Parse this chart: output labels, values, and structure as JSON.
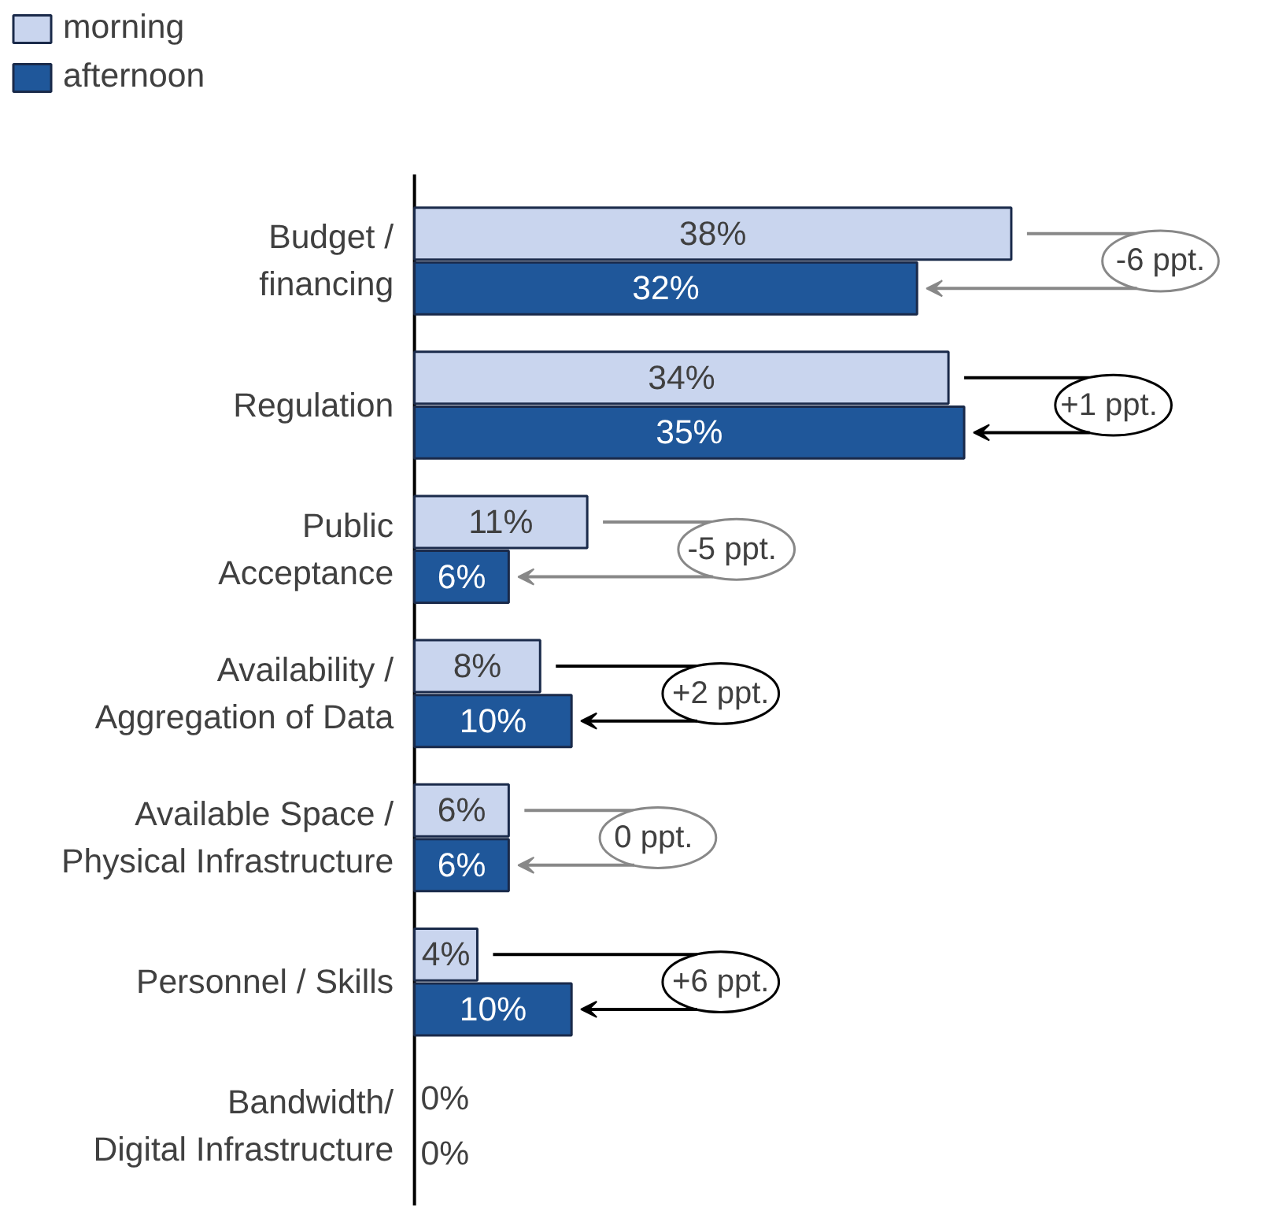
{
  "chart_data": {
    "type": "bar",
    "orientation": "horizontal",
    "categories": [
      "Budget /\nfinancing",
      "Regulation",
      "Public\nAcceptance",
      "Availability /\nAggregation of Data",
      "Available Space /\nPhysical Infrastructure",
      "Personnel / Skills",
      "Bandwidth/\nDigital Infrastructure"
    ],
    "series": [
      {
        "name": "morning",
        "color": "#c9d5ee",
        "values": [
          38,
          34,
          11,
          8,
          6,
          4,
          0
        ],
        "value_labels": [
          "38%",
          "34%",
          "11%",
          "8%",
          "6%",
          "4%",
          "0%"
        ]
      },
      {
        "name": "afternoon",
        "color": "#1f579a",
        "values": [
          32,
          35,
          6,
          10,
          6,
          10,
          0
        ],
        "value_labels": [
          "32%",
          "35%",
          "6%",
          "10%",
          "6%",
          "10%",
          "0%"
        ]
      }
    ],
    "legend": "top left",
    "grid": false,
    "tick_labels": "y",
    "annotations": [
      "-6 ppt.",
      "+1  ppt.",
      "-5  ppt.",
      "+2 ppt.",
      "0  ppt.",
      "+6 ppt."
    ]
  }
}
